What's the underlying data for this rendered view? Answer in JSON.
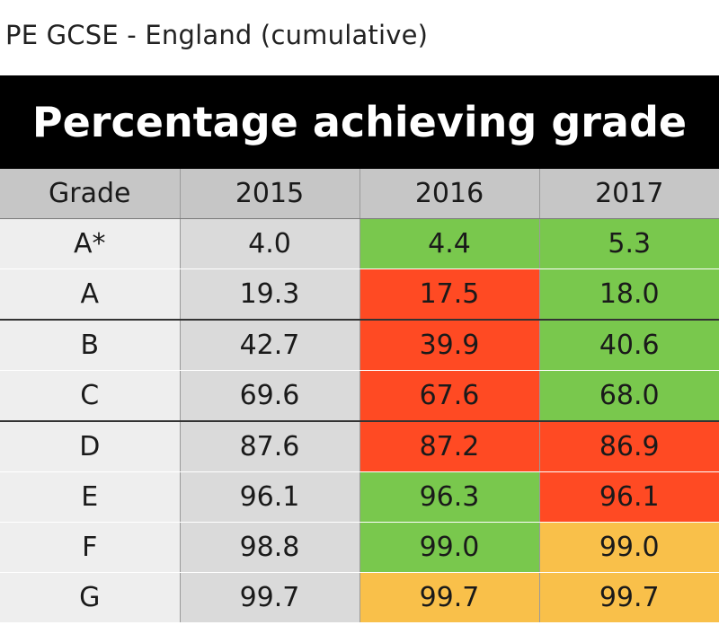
{
  "caption": "PE GCSE - England (cumulative)",
  "colors": {
    "increase": "#79c84d",
    "decrease": "#ff4a23",
    "no_change": "#f9c04a",
    "baseline": "#dadada",
    "header": "#c6c6c6",
    "banner": "#000000"
  },
  "chart_data": {
    "type": "table",
    "title": "Percentage achieving grade",
    "columns": [
      "Grade",
      "2015",
      "2016",
      "2017"
    ],
    "rows": [
      {
        "grade": "A*",
        "values": [
          "4.0",
          "4.4",
          "5.3"
        ],
        "status": [
          "neutral",
          "green",
          "green"
        ]
      },
      {
        "grade": "A",
        "values": [
          "19.3",
          "17.5",
          "18.0"
        ],
        "status": [
          "neutral",
          "red",
          "green"
        ]
      },
      {
        "grade": "B",
        "values": [
          "42.7",
          "39.9",
          "40.6"
        ],
        "status": [
          "neutral",
          "red",
          "green"
        ]
      },
      {
        "grade": "C",
        "values": [
          "69.6",
          "67.6",
          "68.0"
        ],
        "status": [
          "neutral",
          "red",
          "green"
        ]
      },
      {
        "grade": "D",
        "values": [
          "87.6",
          "87.2",
          "86.9"
        ],
        "status": [
          "neutral",
          "red",
          "red"
        ]
      },
      {
        "grade": "E",
        "values": [
          "96.1",
          "96.3",
          "96.1"
        ],
        "status": [
          "neutral",
          "green",
          "red"
        ]
      },
      {
        "grade": "F",
        "values": [
          "98.8",
          "99.0",
          "99.0"
        ],
        "status": [
          "neutral",
          "green",
          "amber"
        ]
      },
      {
        "grade": "G",
        "values": [
          "99.7",
          "99.7",
          "99.7"
        ],
        "status": [
          "neutral",
          "amber",
          "amber"
        ]
      }
    ]
  }
}
